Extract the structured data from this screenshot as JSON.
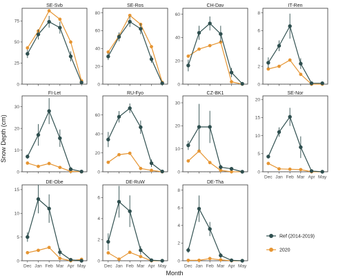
{
  "chart_data": {
    "type": "line",
    "xlabel": "Month",
    "ylabel": "Snow Depth (cm)",
    "months": [
      "Dec",
      "Jan",
      "Feb",
      "Mar",
      "Apr",
      "May"
    ],
    "colors": {
      "ref": "#2f4f4f",
      "y2020": "#e69532",
      "zero_line": "#555555"
    },
    "legend": {
      "position": "bottom-right",
      "ref_label": "Ref (2014-2019)",
      "y2020_label": "2020"
    },
    "panels": [
      {
        "name": "SE-Svb",
        "ylim": [
          0,
          90
        ],
        "yticks": [
          0,
          25,
          50,
          75
        ],
        "ref": [
          36,
          59,
          74,
          67,
          33,
          2
        ],
        "ref_err": [
          5,
          6,
          7,
          7,
          6,
          2
        ],
        "y2020": [
          43,
          63,
          87,
          77,
          50,
          4
        ]
      },
      {
        "name": "SE-Ros",
        "ylim": [
          0,
          85
        ],
        "yticks": [
          0,
          20,
          40,
          60,
          80
        ],
        "ref": [
          31,
          53,
          70,
          62,
          28,
          1
        ],
        "ref_err": [
          4,
          5,
          6,
          6,
          4,
          1
        ],
        "y2020": [
          36,
          54,
          77,
          67,
          42,
          2
        ]
      },
      {
        "name": "CH-Dav",
        "ylim": [
          0,
          65
        ],
        "yticks": [
          0,
          20,
          40,
          60
        ],
        "ref": [
          16,
          44,
          52,
          43,
          10,
          0.3
        ],
        "ref_err": [
          5,
          6,
          6,
          7,
          4,
          0.5
        ],
        "y2020": [
          24,
          30,
          33,
          36,
          2,
          0
        ]
      },
      {
        "name": "IT-Ren",
        "ylim": [
          0,
          8.5
        ],
        "yticks": [
          0,
          2,
          4,
          6,
          8
        ],
        "ref": [
          2.4,
          4.3,
          6.5,
          2.3,
          0.1,
          0.1
        ],
        "ref_err": [
          0.6,
          0.6,
          1.4,
          0.6,
          0.2,
          0.2
        ],
        "y2020": [
          1.7,
          2.0,
          2.7,
          1.1,
          0,
          0
        ]
      },
      {
        "name": "FI-Let",
        "ylim": [
          0,
          35
        ],
        "yticks": [
          0,
          10,
          20,
          30
        ],
        "ref": [
          7,
          17,
          28,
          15.5,
          1.2,
          0.1
        ],
        "ref_err": [
          1,
          5,
          6,
          4,
          0.8,
          0.3
        ],
        "y2020": [
          4,
          2.5,
          3.8,
          2,
          0.2,
          0
        ]
      },
      {
        "name": "RU-Fyo",
        "ylim": [
          0,
          80
        ],
        "yticks": [
          0,
          20,
          40,
          60
        ],
        "ref": [
          34,
          58,
          67,
          47,
          9,
          0.3
        ],
        "ref_err": [
          8,
          6,
          5,
          7,
          4,
          0.5
        ],
        "y2020": [
          10,
          18,
          19.5,
          3.5,
          1.5,
          0
        ]
      },
      {
        "name": "CZ-BK1",
        "ylim": [
          0,
          33
        ],
        "yticks": [
          0,
          10,
          20,
          30
        ],
        "ref": [
          11.5,
          19.5,
          19.5,
          2,
          1.3,
          0
        ],
        "ref_err": [
          2,
          10,
          7,
          1,
          0.8,
          0.3
        ],
        "y2020": [
          4.7,
          9,
          4,
          0.6,
          0,
          0
        ]
      },
      {
        "name": "SE-Nor",
        "ylim": [
          0,
          21
        ],
        "yticks": [
          0,
          5,
          10,
          15,
          20
        ],
        "ref": [
          4.2,
          11,
          15.2,
          6.8,
          0.2,
          0
        ],
        "ref_err": [
          0.5,
          1.3,
          2.5,
          3,
          0.3,
          0.2
        ],
        "y2020": [
          2.3,
          0.8,
          0.7,
          0.6,
          0,
          0
        ]
      },
      {
        "name": "DE-Obe",
        "ylim": [
          0,
          16
        ],
        "yticks": [
          0,
          5,
          10,
          15
        ],
        "ref": [
          5,
          13,
          11,
          1.8,
          0.2,
          0
        ],
        "ref_err": [
          1,
          3,
          3,
          0.8,
          0.3,
          0.2
        ],
        "y2020": [
          1.7,
          2.2,
          2.8,
          0.5,
          0,
          0.3
        ]
      },
      {
        "name": "DE-RuW",
        "ylim": [
          0,
          7.2
        ],
        "yticks": [
          0,
          2,
          4,
          6
        ],
        "ref": [
          1.8,
          5.6,
          4.7,
          1.0,
          0.05,
          0
        ],
        "ref_err": [
          0.8,
          1.5,
          1.5,
          0.4,
          0.1,
          0.1
        ],
        "y2020": [
          0.75,
          0.15,
          0.8,
          0.4,
          0,
          0
        ]
      },
      {
        "name": "DE-Tha",
        "ylim": [
          0,
          8.6
        ],
        "yticks": [
          0,
          2,
          4,
          6,
          8
        ],
        "ref": [
          1.2,
          5.9,
          3.6,
          0.6,
          0.05,
          0
        ],
        "ref_err": [
          0.3,
          1.5,
          0.8,
          0.3,
          0.1,
          0.1
        ],
        "y2020": [
          0.05,
          0.05,
          0.25,
          0.1,
          0,
          0
        ]
      }
    ]
  }
}
